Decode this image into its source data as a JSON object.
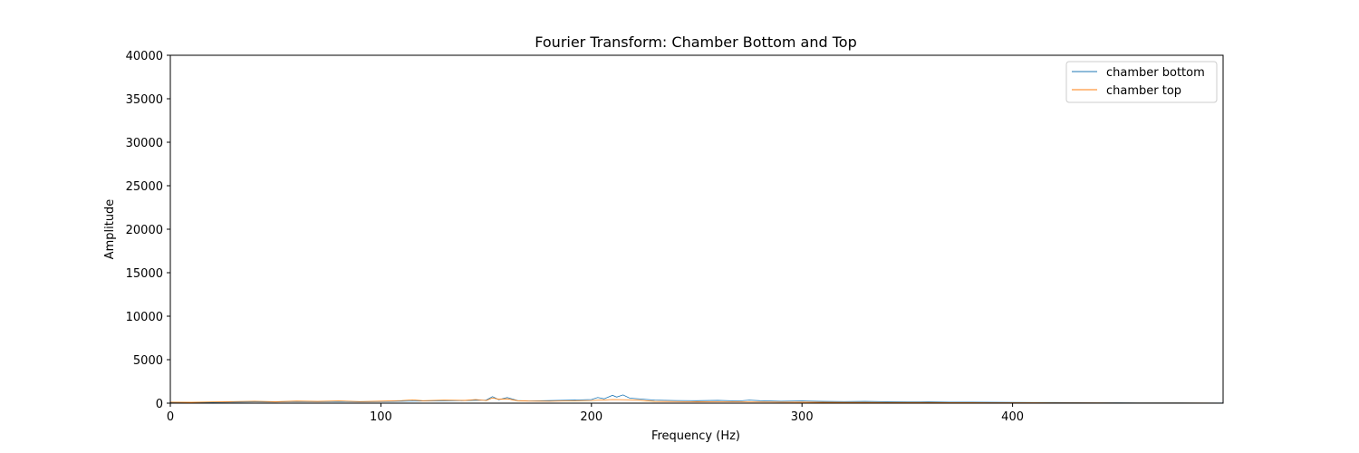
{
  "chart_data": {
    "type": "line",
    "title": "Fourier Transform: Chamber Bottom and Top",
    "xlabel": "Frequency (Hz)",
    "ylabel": "Amplitude",
    "xlim": [
      0,
      500
    ],
    "ylim": [
      0,
      40000
    ],
    "x_ticks": [
      "0",
      "100",
      "200",
      "300",
      "400"
    ],
    "y_ticks": [
      "0",
      "5000",
      "10000",
      "15000",
      "20000",
      "25000",
      "30000",
      "35000",
      "40000"
    ],
    "grid": false,
    "legend_position": "top-right",
    "series": [
      {
        "name": "chamber bottom",
        "color": "#1f77b4",
        "x": [
          0,
          10,
          20,
          30,
          40,
          50,
          60,
          70,
          80,
          90,
          100,
          110,
          120,
          130,
          140,
          150,
          153,
          156,
          160,
          165,
          170,
          180,
          190,
          200,
          203,
          206,
          210,
          212,
          215,
          218,
          220,
          230,
          240,
          250,
          260,
          270,
          275,
          280,
          290,
          300,
          310,
          320,
          330,
          340,
          350,
          360,
          370,
          380,
          390,
          400,
          410,
          420,
          430,
          440,
          450,
          460,
          470,
          480,
          490,
          500
        ],
        "values": [
          80,
          60,
          90,
          120,
          150,
          130,
          180,
          160,
          200,
          150,
          180,
          220,
          250,
          280,
          300,
          350,
          750,
          400,
          650,
          300,
          250,
          300,
          350,
          420,
          650,
          500,
          900,
          700,
          950,
          600,
          550,
          350,
          300,
          280,
          320,
          250,
          350,
          280,
          220,
          260,
          200,
          180,
          200,
          160,
          140,
          150,
          120,
          110,
          100,
          90,
          80,
          70,
          60,
          50,
          45,
          40,
          35,
          30,
          25,
          20
        ]
      },
      {
        "name": "chamber top",
        "color": "#ff7f0e",
        "x": [
          0,
          10,
          20,
          30,
          40,
          50,
          60,
          70,
          80,
          90,
          100,
          110,
          115,
          120,
          130,
          140,
          145,
          150,
          153,
          156,
          160,
          165,
          170,
          180,
          190,
          200,
          210,
          220,
          230,
          240,
          250,
          260,
          270,
          280,
          290,
          300,
          310,
          320,
          330,
          340,
          350,
          360,
          370,
          380,
          390,
          400,
          410,
          420,
          430,
          440,
          450,
          460,
          470,
          480,
          490,
          500
        ],
        "values": [
          120,
          100,
          140,
          180,
          220,
          160,
          240,
          200,
          260,
          180,
          230,
          300,
          380,
          280,
          350,
          320,
          420,
          300,
          600,
          450,
          500,
          280,
          240,
          220,
          260,
          300,
          420,
          380,
          200,
          180,
          150,
          170,
          140,
          130,
          120,
          110,
          100,
          95,
          90,
          80,
          75,
          70,
          65,
          60,
          55,
          50,
          45,
          40,
          35,
          30,
          28,
          25,
          22,
          20,
          18,
          15
        ]
      }
    ]
  }
}
